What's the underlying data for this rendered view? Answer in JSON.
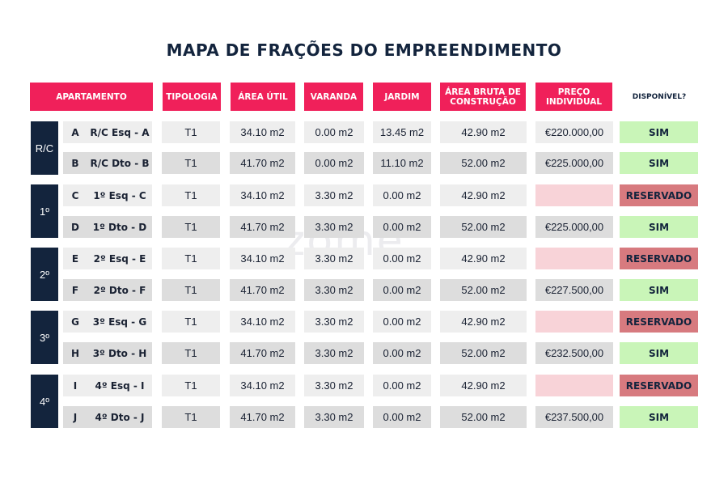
{
  "title": "MAPA DE FRAÇÕES DO EMPREENDIMENTO",
  "watermark": "zome",
  "colors": {
    "header": "#f0205a",
    "floor": "#13243d",
    "row_light": "#eeeeee",
    "row_dark": "#dddddd",
    "available": "#c9f5b8",
    "reserved": "#d77a7f",
    "reserved_price": "#f8d3d8"
  },
  "headers": {
    "apartamento": "APARTAMENTO",
    "tipologia": "TIPOLOGIA",
    "area_util": "ÁREA ÚTIL",
    "varanda": "VARANDA",
    "jardim": "JARDIM",
    "area_bruta": "ÁREA BRUTA DE CONSTRUÇÃO",
    "preco": "PREÇO INDIVIDUAL",
    "disponivel": "DISPONÍVEL?"
  },
  "floors": [
    "R/C",
    "1º",
    "2º",
    "3º",
    "4º"
  ],
  "rows": [
    {
      "letter": "A",
      "name": "R/C  Esq - A",
      "tipologia": "T1",
      "area_util": "34.10 m2",
      "varanda": "0.00 m2",
      "jardim": "13.45 m2",
      "area_bruta": "42.90 m2",
      "preco": "€220.000,00",
      "status": "SIM"
    },
    {
      "letter": "B",
      "name": "R/C  Dto - B",
      "tipologia": "T1",
      "area_util": "41.70 m2",
      "varanda": "0.00 m2",
      "jardim": "11.10 m2",
      "area_bruta": "52.00 m2",
      "preco": "€225.000,00",
      "status": "SIM"
    },
    {
      "letter": "C",
      "name": "1º Esq - C",
      "tipologia": "T1",
      "area_util": "34.10 m2",
      "varanda": "3.30 m2",
      "jardim": "0.00 m2",
      "area_bruta": "42.90 m2",
      "preco": "",
      "status": "RESERVADO"
    },
    {
      "letter": "D",
      "name": "1º Dto - D",
      "tipologia": "T1",
      "area_util": "41.70 m2",
      "varanda": "3.30 m2",
      "jardim": "0.00 m2",
      "area_bruta": "52.00 m2",
      "preco": "€225.000,00",
      "status": "SIM"
    },
    {
      "letter": "E",
      "name": "2º Esq - E",
      "tipologia": "T1",
      "area_util": "34.10 m2",
      "varanda": "3.30 m2",
      "jardim": "0.00 m2",
      "area_bruta": "42.90 m2",
      "preco": "",
      "status": "RESERVADO"
    },
    {
      "letter": "F",
      "name": "2º Dto - F",
      "tipologia": "T1",
      "area_util": "41.70 m2",
      "varanda": "3.30 m2",
      "jardim": "0.00 m2",
      "area_bruta": "52.00 m2",
      "preco": "€227.500,00",
      "status": "SIM"
    },
    {
      "letter": "G",
      "name": "3º Esq - G",
      "tipologia": "T1",
      "area_util": "34.10 m2",
      "varanda": "3.30 m2",
      "jardim": "0.00 m2",
      "area_bruta": "42.90 m2",
      "preco": "",
      "status": "RESERVADO"
    },
    {
      "letter": "H",
      "name": "3º Dto - H",
      "tipologia": "T1",
      "area_util": "41.70 m2",
      "varanda": "3.30 m2",
      "jardim": "0.00 m2",
      "area_bruta": "52.00 m2",
      "preco": "€232.500,00",
      "status": "SIM"
    },
    {
      "letter": "I",
      "name": "4º Esq - I",
      "tipologia": "T1",
      "area_util": "34.10 m2",
      "varanda": "3.30 m2",
      "jardim": "0.00 m2",
      "area_bruta": "42.90 m2",
      "preco": "",
      "status": "RESERVADO"
    },
    {
      "letter": "J",
      "name": "4º Dto - J",
      "tipologia": "T1",
      "area_util": "41.70 m2",
      "varanda": "3.30 m2",
      "jardim": "0.00 m2",
      "area_bruta": "52.00 m2",
      "preco": "€237.500,00",
      "status": "SIM"
    }
  ]
}
